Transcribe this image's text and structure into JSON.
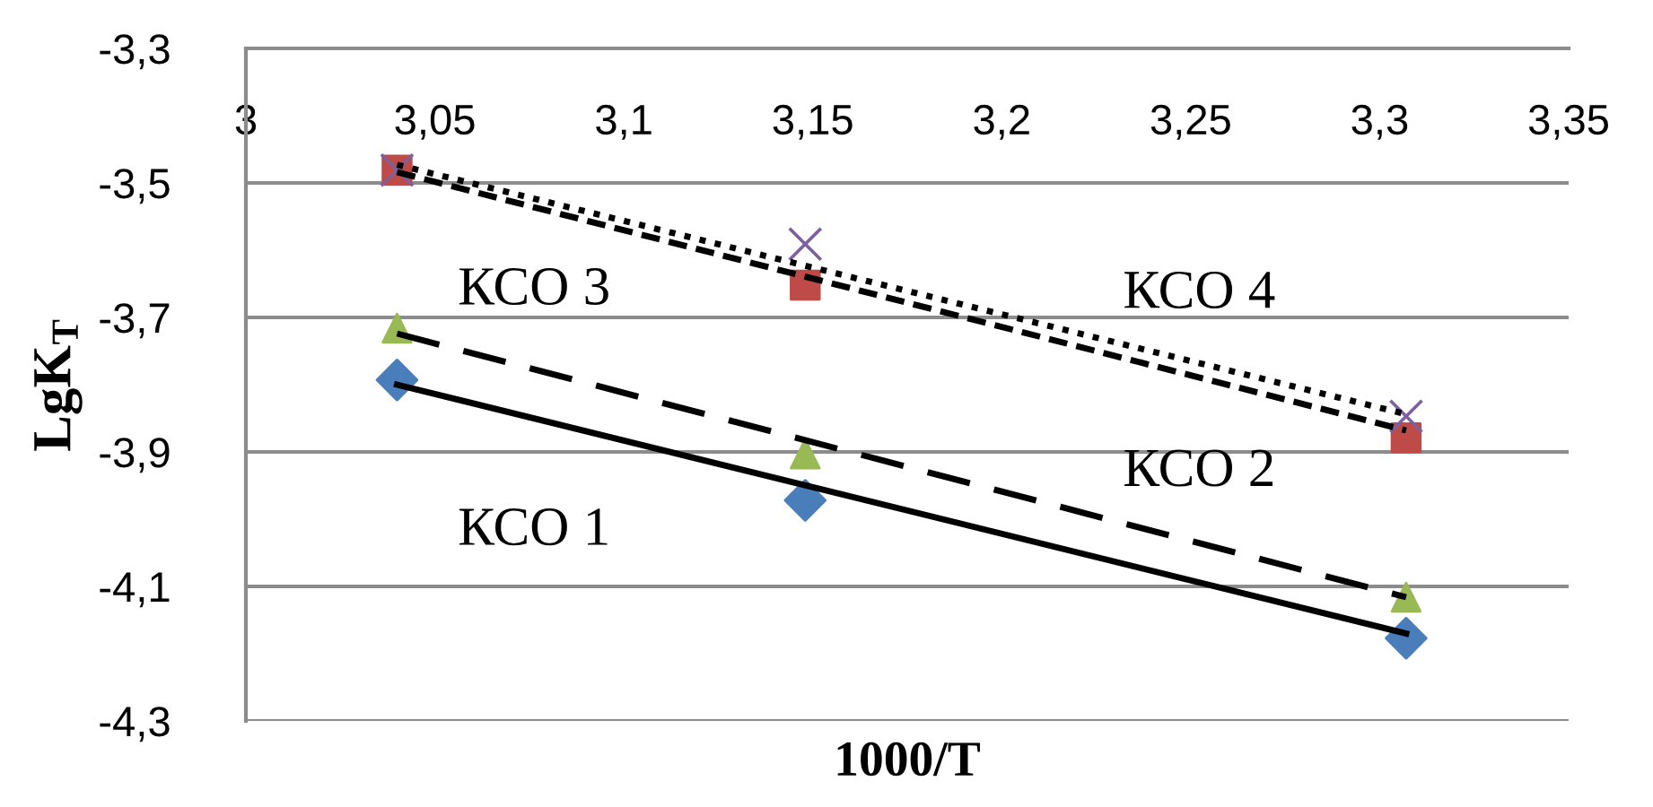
{
  "chart_data": {
    "type": "scatter",
    "xlabel": "1000/T",
    "ylabel": "LgK$_{T}$",
    "xlim": [
      3,
      3.35
    ],
    "xticks": [
      {
        "value": 3,
        "label": "3"
      },
      {
        "value": 3.05,
        "label": "3,05"
      },
      {
        "value": 3.1,
        "label": "3,1"
      },
      {
        "value": 3.15,
        "label": "3,15"
      },
      {
        "value": 3.2,
        "label": "3,2"
      },
      {
        "value": 3.25,
        "label": "3,25"
      },
      {
        "value": 3.3,
        "label": "3,3"
      },
      {
        "value": 3.35,
        "label": "3,35"
      }
    ],
    "ylim": [
      -4.3,
      -3.3
    ],
    "yticks": [
      {
        "value": -4.3,
        "label": "-4,3"
      },
      {
        "value": -4.1,
        "label": "-4,1"
      },
      {
        "value": -3.9,
        "label": "-3,9"
      },
      {
        "value": -3.7,
        "label": "-3,7"
      },
      {
        "value": -3.5,
        "label": "-3,5"
      },
      {
        "value": -3.3,
        "label": "-3,3"
      }
    ],
    "grid": "y",
    "series": [
      {
        "color": "#4a7ebb",
        "marker": "diamond",
        "x": [
          3.04,
          3.148,
          3.307
        ],
        "values": [
          -3.793,
          -3.972,
          -4.177
        ]
      },
      {
        "color": "#be4b48",
        "marker": "square",
        "x": [
          3.04,
          3.148,
          3.307
        ],
        "values": [
          -3.481,
          -3.652,
          -3.879
        ]
      },
      {
        "color": "#98b954",
        "marker": "triangle",
        "x": [
          3.04,
          3.148,
          3.307
        ],
        "values": [
          -3.716,
          -3.903,
          -4.116
        ]
      },
      {
        "color": "#7d60a0",
        "marker": "cross",
        "x": [
          3.04,
          3.148,
          3.307
        ],
        "values": [
          -3.481,
          -3.591,
          -3.847
        ]
      },
      {
        "type": "line",
        "name": "КСО 1",
        "color": "#000000",
        "line_style": "solid",
        "x": [
          3.04,
          3.307
        ],
        "values": [
          -3.8,
          -4.17
        ]
      },
      {
        "type": "line",
        "name": "КСО 2",
        "color": "#000000",
        "line_style": "dashed",
        "x": [
          3.04,
          3.307
        ],
        "values": [
          -3.484,
          -3.868
        ]
      },
      {
        "type": "line",
        "name": "КСО 3",
        "color": "#000000",
        "line_style": "longdash",
        "x": [
          3.04,
          3.307
        ],
        "values": [
          -3.724,
          -4.116
        ]
      },
      {
        "type": "line",
        "name": "КСО 4",
        "color": "#000000",
        "line_style": "dotted",
        "x": [
          3.04,
          3.307
        ],
        "values": [
          -3.473,
          -3.844
        ]
      }
    ]
  }
}
